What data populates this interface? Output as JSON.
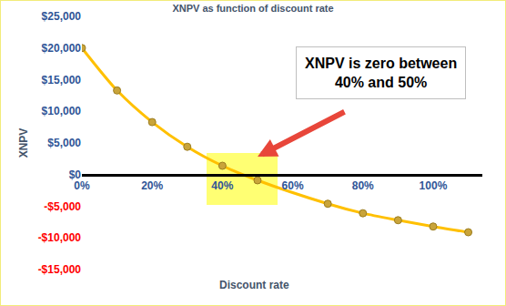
{
  "chart_data": {
    "type": "line",
    "title": "XNPV as function of discount rate",
    "xlabel": "Discount rate",
    "ylabel": "XNPV",
    "x": [
      0,
      10,
      20,
      30,
      40,
      50,
      70,
      80,
      90,
      100,
      110
    ],
    "values": [
      20000,
      13300,
      8300,
      4400,
      1400,
      -900,
      -4600,
      -6100,
      -7200,
      -8200,
      -9100
    ],
    "color": "#ffc000",
    "marker": "circle",
    "line_style": "solid",
    "xlim": [
      0,
      114
    ],
    "xticks": [
      {
        "value": 0,
        "label": "0%"
      },
      {
        "value": 20,
        "label": "20%"
      },
      {
        "value": 40,
        "label": "40%"
      },
      {
        "value": 60,
        "label": "60%"
      },
      {
        "value": 80,
        "label": "80%"
      },
      {
        "value": 100,
        "label": "100%"
      }
    ],
    "ylim": [
      -15000,
      25000
    ],
    "yticks": [
      {
        "value": -15000,
        "label": "-$15,000"
      },
      {
        "value": -10000,
        "label": "-$10,000"
      },
      {
        "value": -5000,
        "label": "-$5,000"
      },
      {
        "value": 0,
        "label": "$0"
      },
      {
        "value": 5000,
        "label": "$5,000"
      },
      {
        "value": 10000,
        "label": "$10,000"
      },
      {
        "value": 15000,
        "label": "$15,000"
      },
      {
        "value": 20000,
        "label": "$20,000"
      },
      {
        "value": 25000,
        "label": "$25,000"
      }
    ],
    "grid": false,
    "annotations": [
      {
        "text": "XNPV is zero between\n40% and 50%"
      }
    ]
  }
}
